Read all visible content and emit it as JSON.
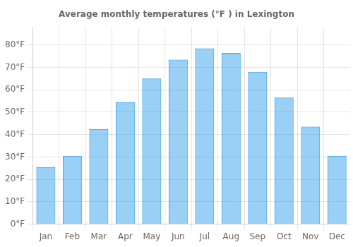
{
  "chart_data": {
    "type": "bar",
    "title": "Average monthly temperatures (°F ) in Lexington",
    "categories": [
      "Jan",
      "Feb",
      "Mar",
      "Apr",
      "May",
      "Jun",
      "Jul",
      "Aug",
      "Sep",
      "Oct",
      "Nov",
      "Dec"
    ],
    "values": [
      25.5,
      30.5,
      42.5,
      54.5,
      65.0,
      73.5,
      78.5,
      76.5,
      68.0,
      56.5,
      43.5,
      30.5
    ],
    "ylim": [
      0,
      88
    ],
    "yticks": [
      {
        "value": 0,
        "label": "0°F"
      },
      {
        "value": 10,
        "label": "10°F"
      },
      {
        "value": 20,
        "label": "20°F"
      },
      {
        "value": 30,
        "label": "30°F"
      },
      {
        "value": 40,
        "label": "40°F"
      },
      {
        "value": 50,
        "label": "50°F"
      },
      {
        "value": 60,
        "label": "60°F"
      },
      {
        "value": 70,
        "label": "70°F"
      },
      {
        "value": 80,
        "label": "80°F"
      }
    ],
    "grid": true
  }
}
